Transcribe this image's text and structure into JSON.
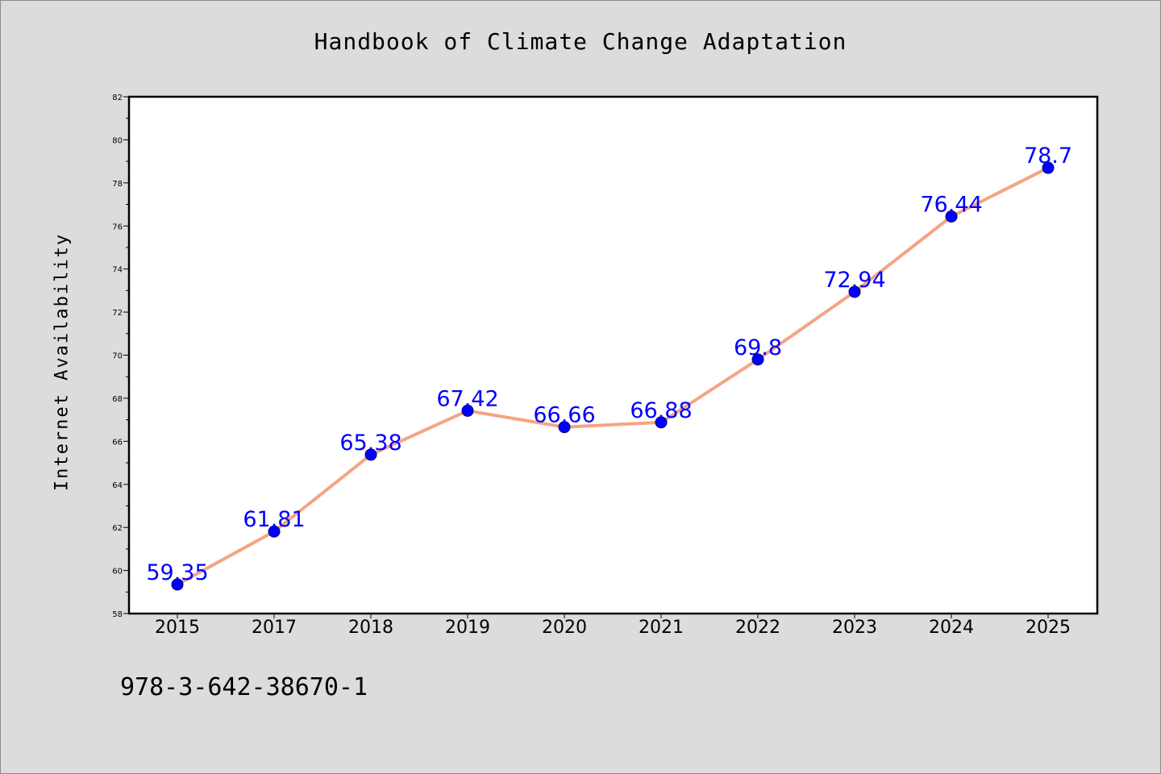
{
  "chart_data": {
    "type": "line",
    "title": "Handbook of Climate Change Adaptation",
    "xlabel": "",
    "ylabel": "Internet Availability",
    "categories": [
      "2015",
      "2017",
      "2018",
      "2019",
      "2020",
      "2021",
      "2022",
      "2023",
      "2024",
      "2025"
    ],
    "series": [
      {
        "name": "",
        "values": [
          59.35,
          61.81,
          65.38,
          67.42,
          66.66,
          66.88,
          69.8,
          72.94,
          76.44,
          78.7
        ],
        "labels": [
          "59.35",
          "61.81",
          "65.38",
          "67.42",
          "66.66",
          "66.88",
          "69.8",
          "72.94",
          "76.44",
          "78.7"
        ],
        "line_color": "#f4a582",
        "marker_color": "#0000ff",
        "label_color": "#0000ff"
      }
    ],
    "ylim": [
      58,
      82
    ],
    "yticks": [
      58,
      60,
      62,
      64,
      66,
      68,
      70,
      72,
      74,
      76,
      78,
      80,
      82
    ],
    "ytick_labels": [
      "58",
      "60",
      "62",
      "64",
      "66",
      "68",
      "70",
      "72",
      "74",
      "76",
      "78",
      "80",
      "82"
    ],
    "grid": false,
    "legend": "none",
    "footer_text": "978-3-642-38670-1"
  }
}
